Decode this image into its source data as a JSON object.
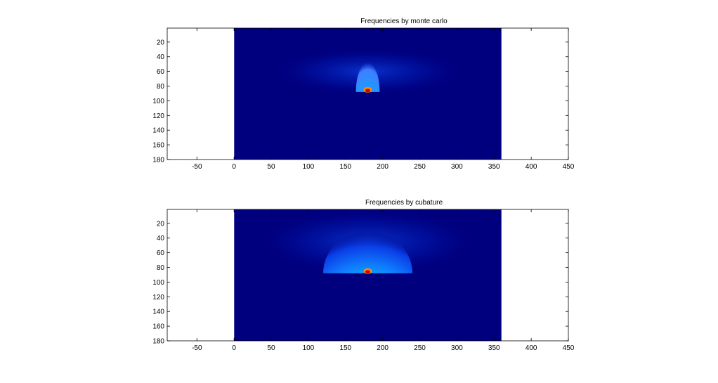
{
  "chart_data": [
    {
      "type": "heatmap",
      "title": "Frequencies by monte carlo",
      "xlim": [
        -90,
        450
      ],
      "ylim": [
        180,
        1
      ],
      "y_direction": "reversed",
      "x_ticks": [
        -50,
        0,
        50,
        100,
        150,
        200,
        250,
        300,
        350,
        400,
        450
      ],
      "y_ticks": [
        20,
        40,
        60,
        80,
        100,
        120,
        140,
        160,
        180
      ],
      "image_x_extent": [
        0,
        360
      ],
      "image_y_extent": [
        1,
        180
      ],
      "colormap": "jet",
      "background_color": "#00007f",
      "peak": {
        "x": 180,
        "y": 88
      },
      "halo_top_y": 48,
      "halo_half_width": 16,
      "wide_glow": {
        "x": 180,
        "y": 60,
        "half_width": 130,
        "half_height": 32
      }
    },
    {
      "type": "heatmap",
      "title": "Frequencies by cubature",
      "xlim": [
        -90,
        450
      ],
      "ylim": [
        180,
        1
      ],
      "y_direction": "reversed",
      "x_ticks": [
        -50,
        0,
        50,
        100,
        150,
        200,
        250,
        300,
        350,
        400,
        450
      ],
      "y_ticks": [
        20,
        40,
        60,
        80,
        100,
        120,
        140,
        160,
        180
      ],
      "image_x_extent": [
        0,
        360
      ],
      "image_y_extent": [
        1,
        180
      ],
      "colormap": "jet",
      "background_color": "#00007f",
      "peak": {
        "x": 180,
        "y": 88
      },
      "halo_top_y": 30,
      "halo_half_width": 60,
      "wide_glow": {
        "x": 180,
        "y": 45,
        "half_width": 150,
        "half_height": 45
      }
    }
  ]
}
